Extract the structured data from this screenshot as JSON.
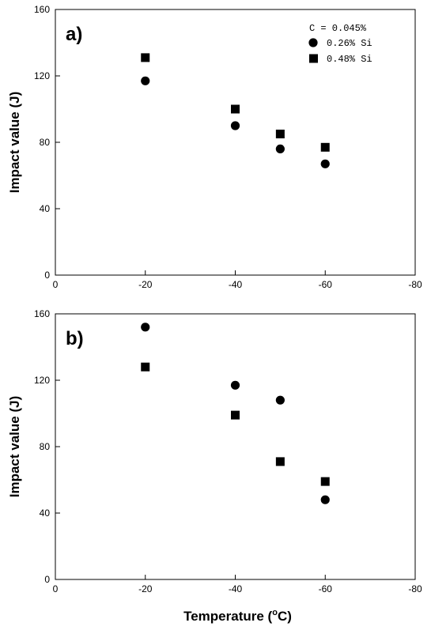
{
  "chart_data": [
    {
      "type": "scatter",
      "panel_label": "a)",
      "xlabel": "",
      "ylabel": "Impact value (J)",
      "xlim": [
        0,
        -80
      ],
      "ylim": [
        0,
        160
      ],
      "xticks": [
        0,
        -20,
        -40,
        -60,
        -80
      ],
      "yticks": [
        0,
        40,
        80,
        120,
        160
      ],
      "grid": false,
      "legend": {
        "placement": "top-right",
        "title": "C = 0.045%",
        "entries": [
          {
            "marker": "circle",
            "label": "0.26% Si"
          },
          {
            "marker": "square",
            "label": "0.48% Si"
          }
        ]
      },
      "series": [
        {
          "name": "0.26% Si",
          "marker": "circle",
          "points": [
            [
              -20,
              117
            ],
            [
              -40,
              90
            ],
            [
              -50,
              76
            ],
            [
              -60,
              67
            ]
          ]
        },
        {
          "name": "0.48% Si",
          "marker": "square",
          "points": [
            [
              -20,
              131
            ],
            [
              -40,
              100
            ],
            [
              -50,
              85
            ],
            [
              -60,
              77
            ]
          ]
        }
      ]
    },
    {
      "type": "scatter",
      "panel_label": "b)",
      "xlabel": "Temperature (°C)",
      "ylabel": "Impact value (J)",
      "xlim": [
        0,
        -80
      ],
      "ylim": [
        0,
        160
      ],
      "xticks": [
        0,
        -20,
        -40,
        -60,
        -80
      ],
      "yticks": [
        0,
        40,
        80,
        120,
        160
      ],
      "grid": false,
      "series": [
        {
          "name": "0.26% Si",
          "marker": "circle",
          "points": [
            [
              -20,
              152
            ],
            [
              -40,
              117
            ],
            [
              -50,
              108
            ],
            [
              -60,
              48
            ]
          ]
        },
        {
          "name": "0.48% Si",
          "marker": "square",
          "points": [
            [
              -20,
              128
            ],
            [
              -40,
              99
            ],
            [
              -50,
              71
            ],
            [
              -60,
              59
            ]
          ]
        }
      ]
    }
  ],
  "colors": {
    "marker": "#000000",
    "axis": "#000000",
    "background": "#ffffff"
  }
}
